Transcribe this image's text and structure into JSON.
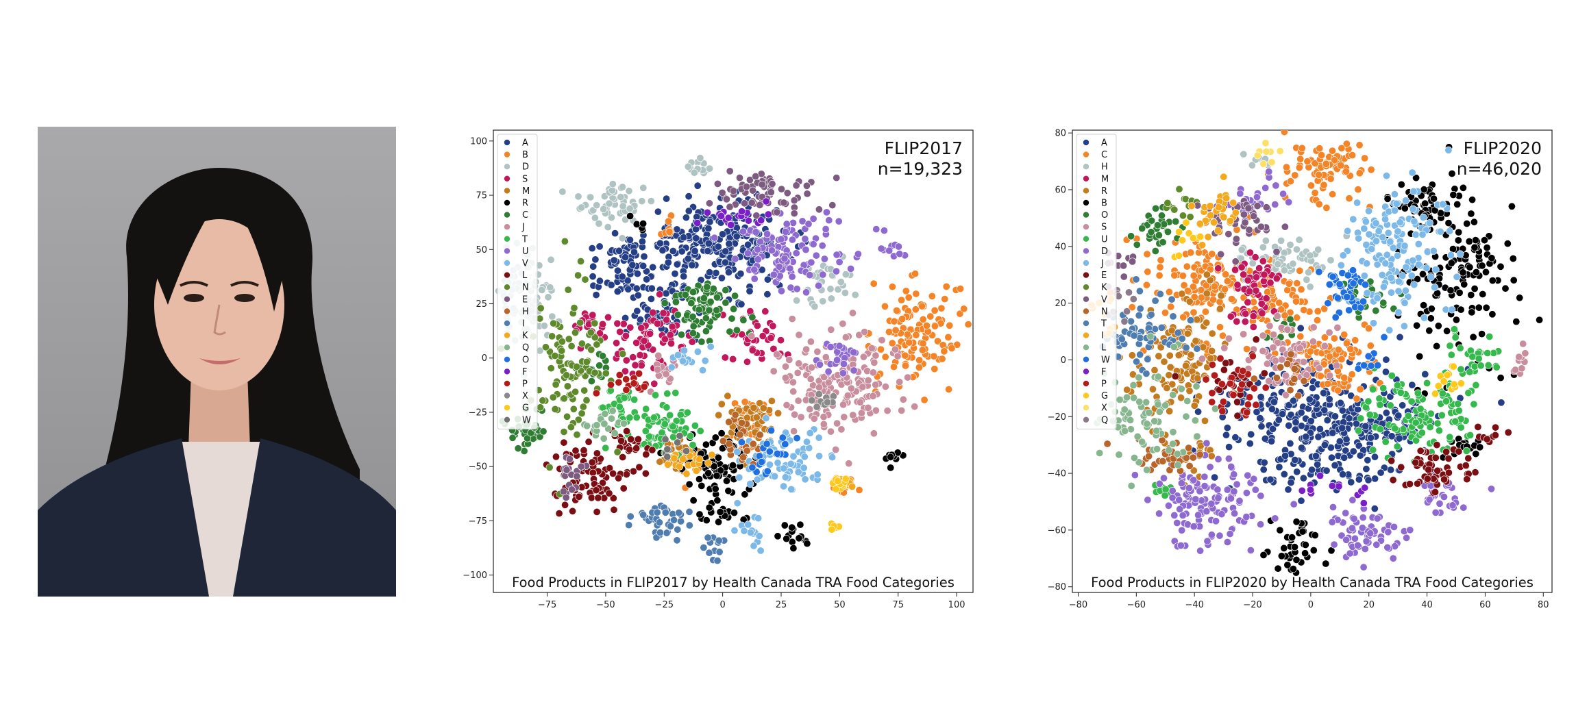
{
  "photo": {
    "description_icon": "portrait-photo"
  },
  "charts": [
    {
      "type": "scatter",
      "title": "FLIP2017",
      "count": "n=19,323",
      "caption": "Food Products in FLIP2017 by Health Canada TRA Food Categories",
      "xlim": [
        -98,
        107
      ],
      "ylim": [
        -108,
        105
      ],
      "xticks": [
        -75,
        -50,
        -25,
        0,
        25,
        50,
        75,
        100
      ],
      "yticks": [
        100,
        75,
        50,
        25,
        0,
        -25,
        -50,
        -75,
        -100
      ],
      "legend_placement": "upper-left",
      "categories": [
        "A",
        "B",
        "D",
        "S",
        "M",
        "R",
        "C",
        "J",
        "T",
        "U",
        "V",
        "L",
        "N",
        "E",
        "H",
        "I",
        "K",
        "Q",
        "O",
        "F",
        "P",
        "X",
        "G",
        "W"
      ],
      "colors": [
        "#253F86",
        "#F58426",
        "#AFC3C2",
        "#C2185B",
        "#C47A1E",
        "#000000",
        "#2E7D32",
        "#C98E9E",
        "#35B84C",
        "#8E6AD0",
        "#7CB9E8",
        "#7A0E12",
        "#5E8A2C",
        "#7D5A80",
        "#B8652A",
        "#4F7DB0",
        "#F4A81C",
        "#86B58E",
        "#1F6FE0",
        "#7A1FC8",
        "#B31B1B",
        "#8A8A8A",
        "#FFC81A",
        "#737373"
      ],
      "clusters": [
        {
          "c": "A",
          "x": -2,
          "y": 52,
          "sx": 16,
          "sy": 10,
          "n": 260
        },
        {
          "c": "A",
          "x": -40,
          "y": 42,
          "sx": 9,
          "sy": 7,
          "n": 70
        },
        {
          "c": "A",
          "x": -25,
          "y": 20,
          "sx": 7,
          "sy": 6,
          "n": 50
        },
        {
          "c": "B",
          "x": 82,
          "y": 12,
          "sx": 9,
          "sy": 12,
          "n": 120
        },
        {
          "c": "B",
          "x": 12,
          "y": -28,
          "sx": 5,
          "sy": 6,
          "n": 30
        },
        {
          "c": "B",
          "x": -18,
          "y": -48,
          "sx": 4,
          "sy": 4,
          "n": 20
        },
        {
          "c": "B",
          "x": -25,
          "y": 60,
          "sx": 3,
          "sy": 3,
          "n": 10
        },
        {
          "c": "B",
          "x": 52,
          "y": -60,
          "sx": 3,
          "sy": 2,
          "n": 12
        },
        {
          "c": "D",
          "x": -85,
          "y": 28,
          "sx": 7,
          "sy": 12,
          "n": 90
        },
        {
          "c": "D",
          "x": -45,
          "y": 72,
          "sx": 8,
          "sy": 5,
          "n": 50
        },
        {
          "c": "D",
          "x": -10,
          "y": 88,
          "sx": 3,
          "sy": 4,
          "n": 15
        },
        {
          "c": "D",
          "x": 45,
          "y": 35,
          "sx": 6,
          "sy": 6,
          "n": 30
        },
        {
          "c": "S",
          "x": -32,
          "y": 8,
          "sx": 9,
          "sy": 8,
          "n": 70
        },
        {
          "c": "S",
          "x": 15,
          "y": 10,
          "sx": 6,
          "sy": 6,
          "n": 35
        },
        {
          "c": "S",
          "x": -55,
          "y": 15,
          "sx": 4,
          "sy": 4,
          "n": 15
        },
        {
          "c": "M",
          "x": 12,
          "y": -30,
          "sx": 6,
          "sy": 8,
          "n": 60
        },
        {
          "c": "M",
          "x": -18,
          "y": -45,
          "sx": 4,
          "sy": 3,
          "n": 20
        },
        {
          "c": "R",
          "x": -2,
          "y": -50,
          "sx": 9,
          "sy": 7,
          "n": 80
        },
        {
          "c": "R",
          "x": 0,
          "y": -72,
          "sx": 5,
          "sy": 3,
          "n": 20
        },
        {
          "c": "R",
          "x": 30,
          "y": -82,
          "sx": 3,
          "sy": 3,
          "n": 15
        },
        {
          "c": "R",
          "x": 74,
          "y": -46,
          "sx": 2,
          "sy": 2,
          "n": 10
        },
        {
          "c": "R",
          "x": -35,
          "y": 62,
          "sx": 2,
          "sy": 2,
          "n": 5
        },
        {
          "c": "C",
          "x": -8,
          "y": 22,
          "sx": 8,
          "sy": 7,
          "n": 80
        },
        {
          "c": "C",
          "x": -85,
          "y": -32,
          "sx": 5,
          "sy": 5,
          "n": 35
        },
        {
          "c": "C",
          "x": -55,
          "y": -5,
          "sx": 4,
          "sy": 4,
          "n": 15
        },
        {
          "c": "J",
          "x": 50,
          "y": -10,
          "sx": 14,
          "sy": 12,
          "n": 170
        },
        {
          "c": "J",
          "x": -25,
          "y": -5,
          "sx": 4,
          "sy": 4,
          "n": 15
        },
        {
          "c": "T",
          "x": -25,
          "y": -32,
          "sx": 8,
          "sy": 8,
          "n": 70
        },
        {
          "c": "T",
          "x": -45,
          "y": -22,
          "sx": 4,
          "sy": 5,
          "n": 25
        },
        {
          "c": "U",
          "x": 28,
          "y": 48,
          "sx": 12,
          "sy": 8,
          "n": 110
        },
        {
          "c": "U",
          "x": 50,
          "y": 0,
          "sx": 4,
          "sy": 4,
          "n": 25
        },
        {
          "c": "U",
          "x": 72,
          "y": 52,
          "sx": 3,
          "sy": 3,
          "n": 10
        },
        {
          "c": "V",
          "x": 25,
          "y": -48,
          "sx": 10,
          "sy": 7,
          "n": 80
        },
        {
          "c": "V",
          "x": 12,
          "y": -78,
          "sx": 3,
          "sy": 4,
          "n": 15
        },
        {
          "c": "V",
          "x": -15,
          "y": 2,
          "sx": 4,
          "sy": 4,
          "n": 15
        },
        {
          "c": "L",
          "x": -58,
          "y": -55,
          "sx": 9,
          "sy": 8,
          "n": 80
        },
        {
          "c": "L",
          "x": -40,
          "y": -40,
          "sx": 4,
          "sy": 4,
          "n": 20
        },
        {
          "c": "N",
          "x": -65,
          "y": -5,
          "sx": 8,
          "sy": 18,
          "n": 100
        },
        {
          "c": "E",
          "x": 18,
          "y": 76,
          "sx": 10,
          "sy": 5,
          "n": 70
        },
        {
          "c": "E",
          "x": -65,
          "y": -52,
          "sx": 4,
          "sy": 5,
          "n": 20
        },
        {
          "c": "H",
          "x": 8,
          "y": -38,
          "sx": 5,
          "sy": 5,
          "n": 25
        },
        {
          "c": "I",
          "x": -25,
          "y": -75,
          "sx": 7,
          "sy": 4,
          "n": 40
        },
        {
          "c": "I",
          "x": -5,
          "y": -88,
          "sx": 3,
          "sy": 3,
          "n": 12
        },
        {
          "c": "K",
          "x": -15,
          "y": -48,
          "sx": 4,
          "sy": 3,
          "n": 20
        },
        {
          "c": "K",
          "x": 52,
          "y": -58,
          "sx": 2,
          "sy": 2,
          "n": 10
        },
        {
          "c": "Q",
          "x": -50,
          "y": -30,
          "sx": 4,
          "sy": 4,
          "n": 20
        },
        {
          "c": "O",
          "x": 20,
          "y": -45,
          "sx": 5,
          "sy": 5,
          "n": 20
        },
        {
          "c": "F",
          "x": 8,
          "y": 65,
          "sx": 8,
          "sy": 3,
          "n": 20
        },
        {
          "c": "P",
          "x": -40,
          "y": -12,
          "sx": 5,
          "sy": 3,
          "n": 15
        },
        {
          "c": "X",
          "x": 40,
          "y": -20,
          "sx": 4,
          "sy": 3,
          "n": 10
        },
        {
          "c": "G",
          "x": 50,
          "y": -58,
          "sx": 2,
          "sy": 2,
          "n": 12
        },
        {
          "c": "G",
          "x": 48,
          "y": -78,
          "sx": 1,
          "sy": 1,
          "n": 5
        },
        {
          "c": "W",
          "x": -20,
          "y": -40,
          "sx": 3,
          "sy": 3,
          "n": 8
        }
      ]
    },
    {
      "type": "scatter",
      "title": "FLIP2020",
      "count": "n=46,020",
      "caption": "Food Products in FLIP2020 by Health Canada TRA Food Categories",
      "xlim": [
        -82,
        83
      ],
      "ylim": [
        -82,
        81
      ],
      "xticks": [
        -80,
        -60,
        -40,
        -20,
        0,
        20,
        40,
        60,
        80
      ],
      "yticks": [
        80,
        60,
        40,
        20,
        0,
        -20,
        -40,
        -60,
        -80
      ],
      "legend_placement": "upper-left",
      "categories": [
        "A",
        "C",
        "H",
        "M",
        "R",
        "B",
        "O",
        "S",
        "U",
        "D",
        "J",
        "E",
        "K",
        "V",
        "N",
        "T",
        "I",
        "L",
        "W",
        "F",
        "P",
        "G",
        "X",
        "Q"
      ],
      "colors": [
        "#253F86",
        "#F58426",
        "#AFC3C2",
        "#C2185B",
        "#C47A1E",
        "#000000",
        "#2E7D32",
        "#C98E9E",
        "#35B84C",
        "#8E6AD0",
        "#7CB9E8",
        "#7A0E12",
        "#5E8A2C",
        "#7D5A80",
        "#B8652A",
        "#4F7DB0",
        "#F4A81C",
        "#86B58E",
        "#1F6FE0",
        "#7A1FC8",
        "#B31B1B",
        "#FFC81A",
        "#FFE066",
        "#8A7A8A"
      ],
      "clusters": [
        {
          "c": "A",
          "x": 5,
          "y": -22,
          "sx": 18,
          "sy": 12,
          "n": 380
        },
        {
          "c": "C",
          "x": 5,
          "y": 68,
          "sx": 7,
          "sy": 5,
          "n": 80
        },
        {
          "c": "C",
          "x": -35,
          "y": 25,
          "sx": 10,
          "sy": 10,
          "n": 140
        },
        {
          "c": "C",
          "x": 8,
          "y": 0,
          "sx": 8,
          "sy": 6,
          "n": 90
        },
        {
          "c": "C",
          "x": -10,
          "y": 20,
          "sx": 6,
          "sy": 6,
          "n": 50
        },
        {
          "c": "H",
          "x": -10,
          "y": 35,
          "sx": 8,
          "sy": 4,
          "n": 60
        },
        {
          "c": "H",
          "x": -17,
          "y": 70,
          "sx": 2,
          "sy": 2,
          "n": 10
        },
        {
          "c": "M",
          "x": -20,
          "y": 25,
          "sx": 6,
          "sy": 6,
          "n": 60
        },
        {
          "c": "R",
          "x": -45,
          "y": 0,
          "sx": 8,
          "sy": 12,
          "n": 120
        },
        {
          "c": "R",
          "x": -40,
          "y": -35,
          "sx": 4,
          "sy": 3,
          "n": 25
        },
        {
          "c": "B",
          "x": 50,
          "y": 30,
          "sx": 10,
          "sy": 15,
          "n": 150
        },
        {
          "c": "B",
          "x": 38,
          "y": 55,
          "sx": 5,
          "sy": 4,
          "n": 40
        },
        {
          "c": "B",
          "x": -5,
          "y": -65,
          "sx": 5,
          "sy": 5,
          "n": 40
        },
        {
          "c": "B",
          "x": 52,
          "y": -30,
          "sx": 3,
          "sy": 2,
          "n": 15
        },
        {
          "c": "O",
          "x": -52,
          "y": 45,
          "sx": 4,
          "sy": 4,
          "n": 30
        },
        {
          "c": "O",
          "x": -8,
          "y": 10,
          "sx": 3,
          "sy": 3,
          "n": 10
        },
        {
          "c": "O",
          "x": 20,
          "y": 20,
          "sx": 5,
          "sy": 4,
          "n": 20
        },
        {
          "c": "S",
          "x": -10,
          "y": 0,
          "sx": 8,
          "sy": 6,
          "n": 70
        },
        {
          "c": "S",
          "x": 72,
          "y": 0,
          "sx": 2,
          "sy": 3,
          "n": 10
        },
        {
          "c": "U",
          "x": 38,
          "y": -20,
          "sx": 10,
          "sy": 8,
          "n": 110
        },
        {
          "c": "U",
          "x": 55,
          "y": 2,
          "sx": 5,
          "sy": 5,
          "n": 30
        },
        {
          "c": "U",
          "x": -52,
          "y": -46,
          "sx": 2,
          "sy": 1,
          "n": 10
        },
        {
          "c": "D",
          "x": -35,
          "y": -50,
          "sx": 9,
          "sy": 8,
          "n": 130
        },
        {
          "c": "D",
          "x": 18,
          "y": -60,
          "sx": 7,
          "sy": 5,
          "n": 60
        },
        {
          "c": "D",
          "x": 45,
          "y": -50,
          "sx": 5,
          "sy": 4,
          "n": 30
        },
        {
          "c": "D",
          "x": -20,
          "y": 55,
          "sx": 5,
          "sy": 4,
          "n": 30
        },
        {
          "c": "J",
          "x": 28,
          "y": 40,
          "sx": 9,
          "sy": 12,
          "n": 150
        },
        {
          "c": "E",
          "x": 42,
          "y": -38,
          "sx": 7,
          "sy": 4,
          "n": 60
        },
        {
          "c": "E",
          "x": -28,
          "y": -8,
          "sx": 5,
          "sy": 5,
          "n": 25
        },
        {
          "c": "E",
          "x": 62,
          "y": -25,
          "sx": 3,
          "sy": 3,
          "n": 10
        },
        {
          "c": "K",
          "x": -45,
          "y": 55,
          "sx": 3,
          "sy": 3,
          "n": 15
        },
        {
          "c": "V",
          "x": -25,
          "y": 50,
          "sx": 6,
          "sy": 5,
          "n": 40
        },
        {
          "c": "V",
          "x": -65,
          "y": 35,
          "sx": 3,
          "sy": 3,
          "n": 10
        },
        {
          "c": "N",
          "x": -50,
          "y": -33,
          "sx": 6,
          "sy": 4,
          "n": 30
        },
        {
          "c": "N",
          "x": -5,
          "y": -5,
          "sx": 4,
          "sy": 4,
          "n": 15
        },
        {
          "c": "T",
          "x": -58,
          "y": 10,
          "sx": 7,
          "sy": 6,
          "n": 60
        },
        {
          "c": "I",
          "x": -32,
          "y": 52,
          "sx": 5,
          "sy": 4,
          "n": 30
        },
        {
          "c": "I",
          "x": -70,
          "y": 15,
          "sx": 3,
          "sy": 4,
          "n": 10
        },
        {
          "c": "L",
          "x": -58,
          "y": -20,
          "sx": 8,
          "sy": 10,
          "n": 80
        },
        {
          "c": "W",
          "x": 12,
          "y": 25,
          "sx": 4,
          "sy": 4,
          "n": 40
        },
        {
          "c": "W",
          "x": 20,
          "y": 0,
          "sx": 3,
          "sy": 3,
          "n": 10
        },
        {
          "c": "F",
          "x": 10,
          "y": -45,
          "sx": 6,
          "sy": 4,
          "n": 12
        },
        {
          "c": "P",
          "x": -25,
          "y": -10,
          "sx": 5,
          "sy": 5,
          "n": 30
        },
        {
          "c": "G",
          "x": 46,
          "y": -8,
          "sx": 3,
          "sy": 3,
          "n": 12
        },
        {
          "c": "G",
          "x": -40,
          "y": 42,
          "sx": 3,
          "sy": 3,
          "n": 10
        },
        {
          "c": "X",
          "x": -15,
          "y": 72,
          "sx": 3,
          "sy": 2,
          "n": 8
        },
        {
          "c": "Q",
          "x": -65,
          "y": 20,
          "sx": 3,
          "sy": 3,
          "n": 10
        }
      ]
    }
  ]
}
